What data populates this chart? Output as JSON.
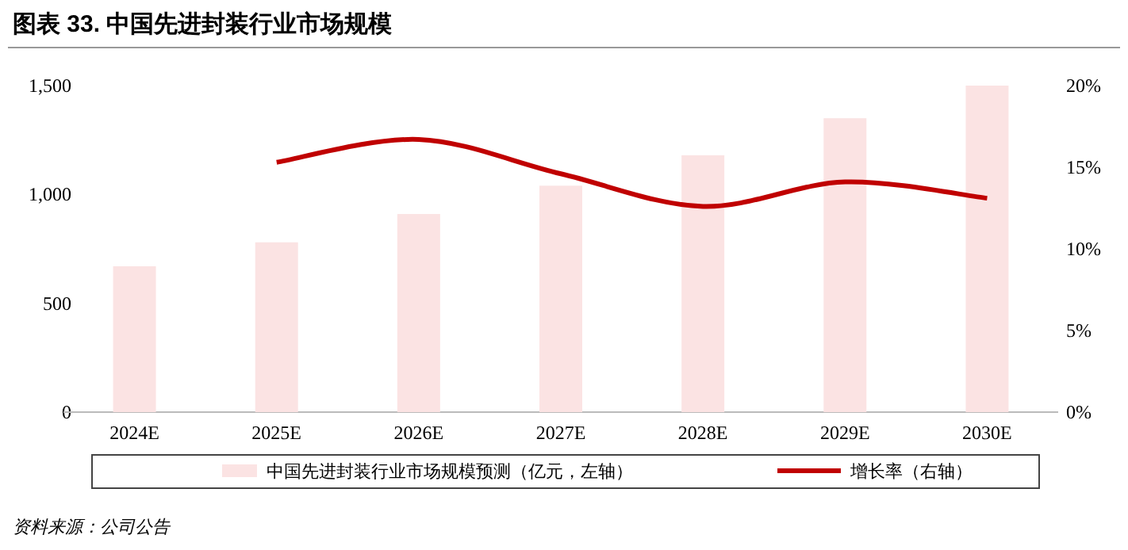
{
  "chart_data": {
    "type": "bar",
    "title": "图表 33. 中国先进封装行业市场规模",
    "categories": [
      "2024E",
      "2025E",
      "2026E",
      "2027E",
      "2028E",
      "2029E",
      "2030E"
    ],
    "series": [
      {
        "name": "中国先进封装行业市场规模预测（亿元，左轴）",
        "color": "#fbe3e3",
        "values": [
          670,
          780,
          910,
          1040,
          1180,
          1350,
          1500
        ]
      },
      {
        "name": "增长率（右轴）",
        "type": "line",
        "axis": "y2",
        "color": "#c00000",
        "values": [
          null,
          15.3,
          16.7,
          14.6,
          12.6,
          14.1,
          13.1
        ]
      }
    ],
    "ylim": [
      0,
      1500
    ],
    "yticks": [
      0,
      500,
      {
        "value": 1000,
        "label": "1,000"
      },
      {
        "value": 1500,
        "label": "1,500"
      }
    ],
    "y2lim": [
      0,
      20
    ],
    "y2ticks": [
      {
        "value": 0,
        "label": "0%"
      },
      {
        "value": 5,
        "label": "5%"
      },
      {
        "value": 10,
        "label": "10%"
      },
      {
        "value": 15,
        "label": "15%"
      },
      {
        "value": 20,
        "label": "20%"
      }
    ],
    "legend": "bottom",
    "annotations": [
      "资料来源：公司公告"
    ]
  }
}
